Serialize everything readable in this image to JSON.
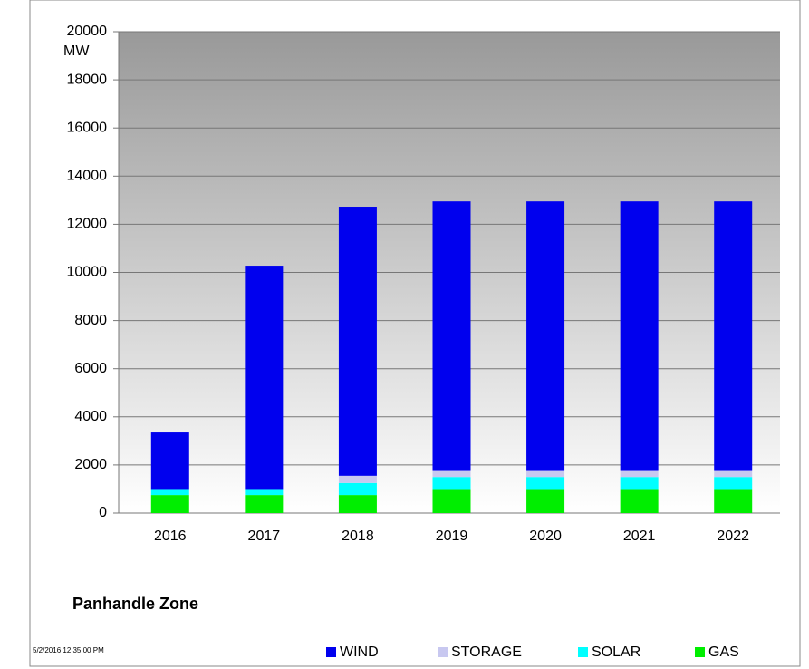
{
  "chart_data": {
    "type": "stacked_bar",
    "title": "Panhandle Zone",
    "y_label": "MW",
    "timestamp": "5/2/2016 12:35:00 PM",
    "categories": [
      "2016",
      "2017",
      "2018",
      "2019",
      "2020",
      "2021",
      "2022"
    ],
    "series": [
      {
        "name": "WIND",
        "color": "#0000ee",
        "values": [
          2350,
          9280,
          11180,
          11200,
          11200,
          11200,
          11200
        ]
      },
      {
        "name": "STORAGE",
        "color": "#c8c8f0",
        "values": [
          0,
          0,
          300,
          250,
          250,
          250,
          250
        ]
      },
      {
        "name": "SOLAR",
        "color": "#00ffff",
        "values": [
          250,
          250,
          500,
          500,
          500,
          500,
          500
        ]
      },
      {
        "name": "GAS",
        "color": "#00ee00",
        "values": [
          750,
          750,
          750,
          1000,
          1000,
          1000,
          1000
        ]
      }
    ],
    "ylim": [
      0,
      20000
    ],
    "yticks": [
      0,
      2000,
      4000,
      6000,
      8000,
      10000,
      12000,
      14000,
      16000,
      18000,
      20000
    ],
    "grid": true
  }
}
